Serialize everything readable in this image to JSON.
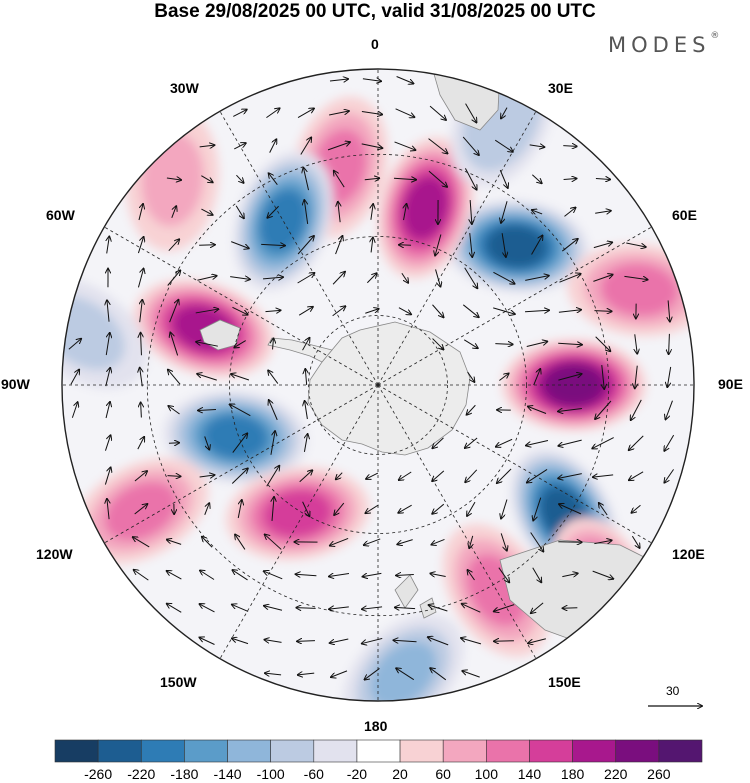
{
  "header": {
    "title": "Base 29/08/2025 00 UTC, valid 31/08/2025 00 UTC",
    "brand": "MODES",
    "brand_mark": "®"
  },
  "map": {
    "projection": "south polar stereographic",
    "longitude_labels": {
      "lon_0": "0",
      "lon_30e": "30E",
      "lon_60e": "60E",
      "lon_90e": "90E",
      "lon_120e": "120E",
      "lon_150e": "150E",
      "lon_180": "180",
      "lon_150w": "150W",
      "lon_120w": "120W",
      "lon_90w": "90W",
      "lon_60w": "60W",
      "lon_30w": "30W"
    },
    "reference_vector": "30",
    "anomalies": [
      {
        "lon": 90,
        "lat_ring": 0.62,
        "value": 250
      },
      {
        "lon": 125,
        "lat_ring": 0.72,
        "value": -230
      },
      {
        "lon": 45,
        "lat_ring": 0.62,
        "value": -240
      },
      {
        "lon": 15,
        "lat_ring": 0.58,
        "value": 200
      },
      {
        "lon": -10,
        "lat_ring": 0.7,
        "value": 130
      },
      {
        "lon": -30,
        "lat_ring": 0.6,
        "value": -190
      },
      {
        "lon": -72,
        "lat_ring": 0.58,
        "value": 180
      },
      {
        "lon": -110,
        "lat_ring": 0.48,
        "value": -190
      },
      {
        "lon": -148,
        "lat_ring": 0.48,
        "value": 170
      },
      {
        "lon": -118,
        "lat_ring": 0.85,
        "value": 110
      },
      {
        "lon": -80,
        "lat_ring": 0.95,
        "value": -80
      },
      {
        "lon": -45,
        "lat_ring": 0.92,
        "value": 70
      },
      {
        "lon": 150,
        "lat_ring": 0.75,
        "value": 120
      },
      {
        "lon": 132,
        "lat_ring": 0.95,
        "value": 150
      },
      {
        "lon": 175,
        "lat_ring": 0.92,
        "value": -110
      },
      {
        "lon": 25,
        "lat_ring": 0.93,
        "value": -100
      },
      {
        "lon": 70,
        "lat_ring": 0.88,
        "value": 110
      }
    ]
  },
  "colorbar": {
    "ticks": [
      "-260",
      "-220",
      "-180",
      "-140",
      "-100",
      "-60",
      "-20",
      "20",
      "60",
      "100",
      "140",
      "180",
      "220",
      "260"
    ],
    "colors": [
      "#173d63",
      "#1d5d91",
      "#2e7cb5",
      "#5b9cc9",
      "#8fb6da",
      "#bccbe2",
      "#e2e2ee",
      "#ffffff",
      "#f8d2d4",
      "#f3a7bf",
      "#ea73aa",
      "#d53e9a",
      "#a8188d",
      "#7a0e7e",
      "#541670"
    ]
  }
}
